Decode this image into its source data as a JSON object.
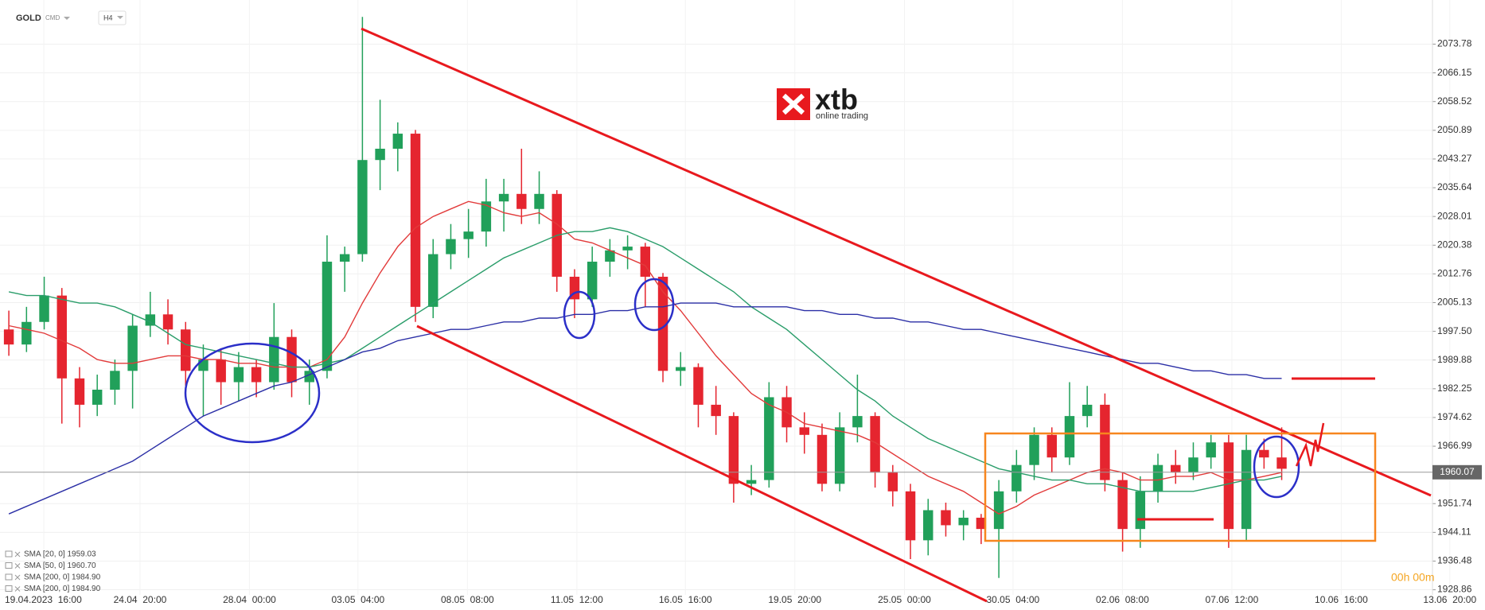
{
  "header": {
    "symbol": "GOLD",
    "market": "CMD",
    "interval": "H4"
  },
  "logo": {
    "brand": "xtb",
    "tagline": "online trading"
  },
  "countdown": "00h 00m",
  "chart_data": {
    "type": "candlestick",
    "ylim": [
      1927.5,
      2085.5
    ],
    "yticks": [
      2073.78,
      2066.15,
      2058.52,
      2050.89,
      2043.27,
      2035.64,
      2028.01,
      2020.38,
      2012.76,
      2005.13,
      {
        "value": 1997.5,
        "label": "1997.50"
      },
      1989.88,
      1982.25,
      1974.62,
      1966.99,
      1951.74,
      1944.11,
      1936.48,
      1928.86
    ],
    "xlim": [
      -0.5,
      83.5
    ],
    "xticks": [
      {
        "value": 1.98,
        "label": "19.04.2023  16:00"
      },
      {
        "value": 7.42,
        "label": "24.04  20:00"
      },
      {
        "value": 13.61,
        "label": "28.04  00:00"
      },
      {
        "value": 19.75,
        "label": "03.05  04:00"
      },
      {
        "value": 25.94,
        "label": "08.05  08:00"
      },
      {
        "value": 32.13,
        "label": "11.05  12:00"
      },
      {
        "value": 38.27,
        "label": "16.05  16:00"
      },
      {
        "value": 44.46,
        "label": "19.05  20:00"
      },
      {
        "value": 50.66,
        "label": "25.05  00:00"
      },
      {
        "value": 56.8,
        "label": "30.05  04:00"
      },
      {
        "value": 62.99,
        "label": "02.06  08:00"
      },
      {
        "value": 69.18,
        "label": "07.06  12:00"
      },
      {
        "value": 75.37,
        "label": "10.06  16:00"
      },
      {
        "value": 81.51,
        "label": "13.06  20:00"
      }
    ],
    "current_price": 1960.07,
    "up_color": "#21a05a",
    "down_color": "#e5252f",
    "ohlc": [
      [
        1998,
        2003,
        1991,
        1994
      ],
      [
        1994,
        2004,
        1992,
        2000
      ],
      [
        2000,
        2012,
        1998,
        2007
      ],
      [
        2007,
        2009,
        1973,
        1985
      ],
      [
        1985,
        1988,
        1972,
        1978
      ],
      [
        1978,
        1986,
        1975,
        1982
      ],
      [
        1982,
        1990,
        1978,
        1987
      ],
      [
        1987,
        2002,
        1977,
        1999
      ],
      [
        1999,
        2008,
        1996,
        2002
      ],
      [
        2002,
        2006,
        1994,
        1998
      ],
      [
        1998,
        2000,
        1983,
        1987
      ],
      [
        1987,
        1994,
        1975,
        1990
      ],
      [
        1990,
        1993,
        1978,
        1984
      ],
      [
        1984,
        1992,
        1979,
        1988
      ],
      [
        1988,
        1990,
        1980,
        1984
      ],
      [
        1984,
        2005,
        1982,
        1996
      ],
      [
        1996,
        1998,
        1980,
        1984
      ],
      [
        1984,
        1990,
        1978,
        1987
      ],
      [
        1987,
        2023,
        1985,
        2016
      ],
      [
        2016,
        2020,
        2008,
        2018
      ],
      [
        2018,
        2081,
        2016,
        2043
      ],
      [
        2043,
        2059,
        2035,
        2046
      ],
      [
        2046,
        2053,
        2040,
        2050
      ],
      [
        2050,
        2051,
        2000,
        2004
      ],
      [
        2004,
        2022,
        2001,
        2018
      ],
      [
        2018,
        2026,
        2014,
        2022
      ],
      [
        2022,
        2030,
        2017,
        2024
      ],
      [
        2024,
        2038,
        2020,
        2032
      ],
      [
        2032,
        2038,
        2024,
        2034
      ],
      [
        2034,
        2046,
        2026,
        2030
      ],
      [
        2030,
        2040,
        2026,
        2034
      ],
      [
        2034,
        2035,
        2008,
        2012
      ],
      [
        2012,
        2014,
        2001,
        2006
      ],
      [
        2006,
        2020,
        2004,
        2016
      ],
      [
        2016,
        2022,
        2012,
        2019
      ],
      [
        2019,
        2023,
        2014,
        2020
      ],
      [
        2020,
        2021,
        2004,
        2012
      ],
      [
        2012,
        2013,
        1984,
        1987
      ],
      [
        1987,
        1992,
        1983,
        1988
      ],
      [
        1988,
        1989,
        1972,
        1978
      ],
      [
        1978,
        1983,
        1970,
        1975
      ],
      [
        1975,
        1976,
        1952,
        1957
      ],
      [
        1957,
        1962,
        1954,
        1958
      ],
      [
        1958,
        1984,
        1956,
        1980
      ],
      [
        1980,
        1983,
        1968,
        1972
      ],
      [
        1972,
        1976,
        1965,
        1970
      ],
      [
        1970,
        1973,
        1955,
        1957
      ],
      [
        1957,
        1976,
        1955,
        1972
      ],
      [
        1972,
        1986,
        1968,
        1975
      ],
      [
        1975,
        1976,
        1956,
        1960
      ],
      [
        1960,
        1962,
        1951,
        1955
      ],
      [
        1955,
        1957,
        1937,
        1942
      ],
      [
        1942,
        1953,
        1938,
        1950
      ],
      [
        1950,
        1952,
        1943,
        1946
      ],
      [
        1946,
        1950,
        1942,
        1948
      ],
      [
        1948,
        1949,
        1941,
        1945
      ],
      [
        1945,
        1958,
        1932,
        1955
      ],
      [
        1955,
        1966,
        1952,
        1962
      ],
      [
        1962,
        1972,
        1958,
        1970
      ],
      [
        1970,
        1972,
        1960,
        1964
      ],
      [
        1964,
        1984,
        1962,
        1975
      ],
      [
        1975,
        1983,
        1972,
        1978
      ],
      [
        1978,
        1981,
        1955,
        1958
      ],
      [
        1958,
        1960,
        1939,
        1945
      ],
      [
        1945,
        1959,
        1940,
        1955
      ],
      [
        1955,
        1965,
        1952,
        1962
      ],
      [
        1962,
        1966,
        1957,
        1960
      ],
      [
        1960,
        1968,
        1958,
        1964
      ],
      [
        1964,
        1970,
        1961,
        1968
      ],
      [
        1968,
        1970,
        1940,
        1945
      ],
      [
        1945,
        1970,
        1942,
        1966
      ],
      [
        1966,
        1969,
        1961,
        1964
      ],
      [
        1964,
        1972,
        1958,
        1961
      ]
    ],
    "legend": [
      "SMA [20, 0] 1959.03",
      "SMA [50, 0] 1960.70",
      "SMA [200, 0] 1984.90",
      "SMA [200, 0] 1984.90"
    ],
    "series": [
      {
        "color": "#e23a3a",
        "values": [
          1999,
          1998,
          1997,
          1995,
          1993,
          1990,
          1989,
          1989,
          1990,
          1991,
          1991,
          1990,
          1990,
          1989,
          1989,
          1988,
          1988,
          1988,
          1990,
          1996,
          2005,
          2013,
          2020,
          2025,
          2028,
          2030,
          2032,
          2031,
          2029,
          2028,
          2029,
          2026,
          2022,
          2021,
          2019,
          2017,
          2015,
          2008,
          2003,
          1997,
          1991,
          1986,
          1981,
          1978,
          1976,
          1973,
          1972,
          1971,
          1970,
          1968,
          1965,
          1962,
          1959,
          1957,
          1955,
          1952,
          1949,
          1951,
          1954,
          1956,
          1958,
          1960,
          1961,
          1960,
          1958,
          1958,
          1959,
          1959,
          1960,
          1958,
          1958,
          1959,
          1960
        ]
      },
      {
        "color": "#2a9d6a",
        "values": [
          2008,
          2007,
          2007,
          2006,
          2005,
          2005,
          2004,
          2002,
          2000,
          1997,
          1994,
          1993,
          1992,
          1991,
          1990,
          1989,
          1988,
          1988,
          1989,
          1990,
          1993,
          1996,
          1999,
          2002,
          2005,
          2008,
          2011,
          2014,
          2017,
          2019,
          2021,
          2023,
          2024,
          2024,
          2025,
          2024,
          2022,
          2020,
          2017,
          2014,
          2011,
          2008,
          2004,
          2001,
          1998,
          1994,
          1990,
          1986,
          1982,
          1979,
          1975,
          1972,
          1969,
          1967,
          1965,
          1963,
          1961,
          1960,
          1959,
          1958,
          1958,
          1957,
          1957,
          1956,
          1955,
          1955,
          1955,
          1955,
          1956,
          1957,
          1958,
          1958,
          1959
        ]
      },
      {
        "color": "#2b2fa6",
        "values": [
          1949,
          1951,
          1953,
          1955,
          1957,
          1959,
          1961,
          1963,
          1966,
          1969,
          1972,
          1975,
          1977,
          1979,
          1981,
          1983,
          1984,
          1986,
          1988,
          1990,
          1992,
          1993,
          1995,
          1996,
          1997,
          1998,
          1998,
          1999,
          2000,
          2000,
          2001,
          2001,
          2002,
          2002,
          2003,
          2003,
          2004,
          2004,
          2005,
          2005,
          2005,
          2004,
          2004,
          2004,
          2004,
          2003,
          2003,
          2002,
          2002,
          2001,
          2001,
          2000,
          2000,
          1999,
          1998,
          1998,
          1997,
          1996,
          1995,
          1994,
          1993,
          1992,
          1991,
          1990,
          1989,
          1989,
          1988,
          1987,
          1987,
          1986,
          1986,
          1985,
          1985
        ]
      }
    ]
  }
}
